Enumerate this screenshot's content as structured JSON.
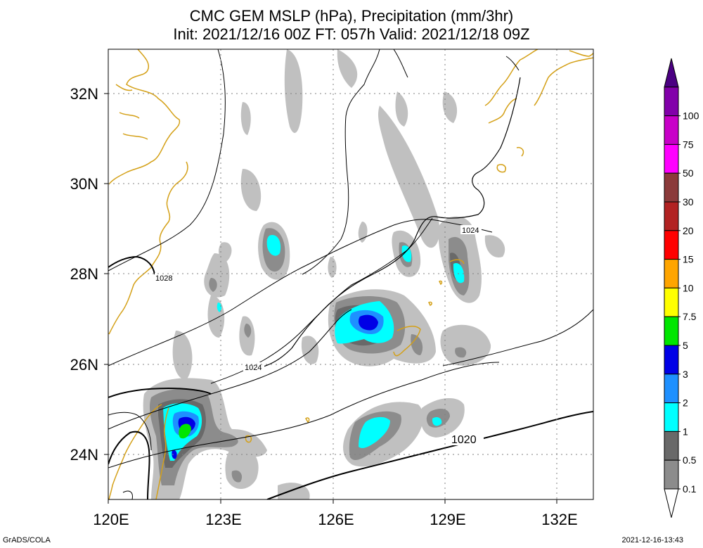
{
  "title": {
    "line1": "CMC GEM MSLP (hPa), Precipitation (mm/3hr)",
    "line2": "Init: 2021/12/16 00Z  FT: 057h  Valid: 2021/12/18 09Z"
  },
  "map": {
    "lon_labels": [
      "120E",
      "123E",
      "126E",
      "129E",
      "132E"
    ],
    "lat_labels": [
      "32N",
      "30N",
      "28N",
      "26N",
      "24N"
    ],
    "lon_range": [
      120,
      133
    ],
    "lat_range": [
      23,
      33
    ],
    "isobar_labels": [
      "1028",
      "1024",
      "1024",
      "1020"
    ]
  },
  "colorbar": {
    "labels": [
      "0.1",
      "0.5",
      "1",
      "2",
      "3",
      "5",
      "7.5",
      "10",
      "15",
      "20",
      "30",
      "50",
      "75",
      "100"
    ],
    "colors": [
      "#c0c0c0",
      "#8c8c8c",
      "#696969",
      "#00ffff",
      "#1e90ff",
      "#0000e6",
      "#00e600",
      "#ffff00",
      "#ffa500",
      "#ff0000",
      "#b22222",
      "#8b3a3a",
      "#ff00ff",
      "#c800c8",
      "#8200aa",
      "#4b0082"
    ]
  },
  "footer": {
    "left": "GrADS/COLA",
    "right": "2021-12-16-13:43"
  }
}
